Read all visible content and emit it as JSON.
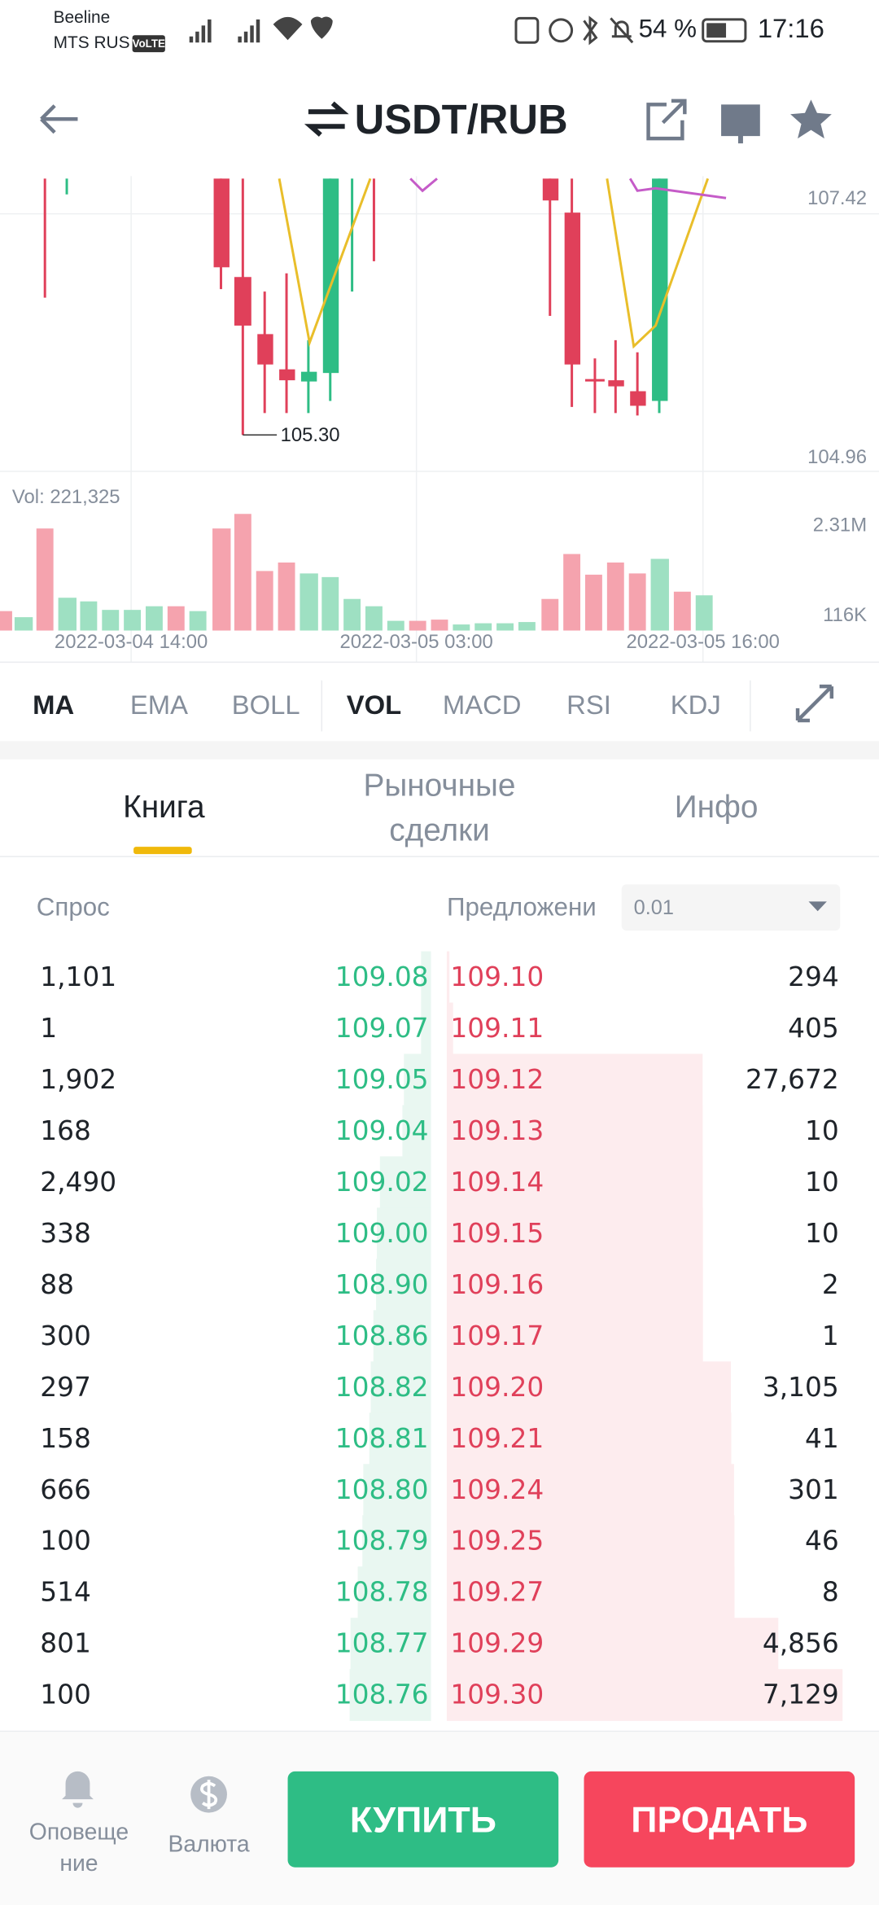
{
  "status_bar": {
    "carrier_1": "Beeline",
    "carrier_2": "MTS RUS",
    "volte": "VoLTE",
    "battery": "54 %",
    "time": "17:16"
  },
  "header": {
    "title": "USDT/RUB"
  },
  "chart": {
    "price_high": "107.42",
    "price_low": "104.96",
    "marker": "105.30",
    "volume": "Vol: 221,325",
    "volume_high": "2.31M",
    "volume_low": "116K",
    "dates": [
      "2022-03-04 14:00",
      "2022-03-05 03:00",
      "2022-03-05 16:00"
    ]
  },
  "indicators": [
    "MA",
    "EMA",
    "BOLL",
    "VOL",
    "MACD",
    "RSI",
    "KDJ"
  ],
  "book_tabs": [
    [
      "Книга"
    ],
    [
      "Рыночные",
      "сделки"
    ],
    [
      "Инфо"
    ]
  ],
  "order_book": {
    "bid_header": "Спрос",
    "ask_header": "Предложени",
    "precision": "0.01",
    "rows": [
      [
        "1,101",
        "109.08",
        "109.10",
        "294"
      ],
      [
        "1",
        "109.07",
        "109.11",
        "405"
      ],
      [
        "1,902",
        "109.05",
        "109.12",
        "27,672"
      ],
      [
        "168",
        "109.04",
        "109.13",
        "10"
      ],
      [
        "2,490",
        "109.02",
        "109.14",
        "10"
      ],
      [
        "338",
        "109.00",
        "109.15",
        "10"
      ],
      [
        "88",
        "108.90",
        "109.16",
        "2"
      ],
      [
        "300",
        "108.86",
        "109.17",
        "1"
      ],
      [
        "297",
        "108.82",
        "109.20",
        "3,105"
      ],
      [
        "158",
        "108.81",
        "109.21",
        "41"
      ],
      [
        "666",
        "108.80",
        "109.24",
        "301"
      ],
      [
        "100",
        "108.79",
        "109.25",
        "46"
      ],
      [
        "514",
        "108.78",
        "109.27",
        "8"
      ],
      [
        "801",
        "108.77",
        "109.29",
        "4,856"
      ],
      [
        "100",
        "108.76",
        "109.30",
        "7,129"
      ]
    ]
  },
  "bottom_bar": {
    "alerts": [
      "Оповеще",
      "ние"
    ],
    "currency": "Валюта",
    "buy": "КУПИТЬ",
    "sell": "ПРОДАТЬ"
  }
}
